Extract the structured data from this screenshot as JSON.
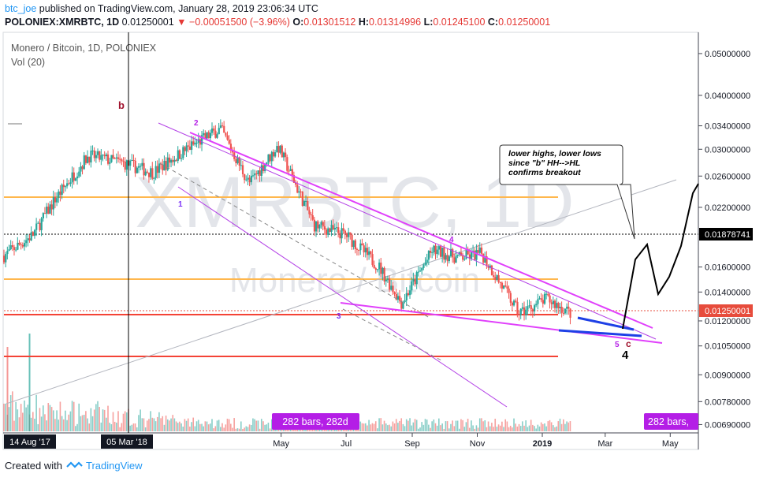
{
  "header": {
    "user": "btc_joe",
    "published_text": "published on TradingView.com, January 28, 2019 23:06:34 UTC",
    "symbol": "POLONIEX:XMRBTC, 1D",
    "last": "0.01250001",
    "change_arrow": "▼",
    "change": "−0.00051500 (−3.96%)",
    "open_label": "O:",
    "open": "0.01301512",
    "high_label": "H:",
    "high": "0.01314996",
    "low_label": "L:",
    "low": "0.01245100",
    "close_label": "C:",
    "close": "0.01250001"
  },
  "legend": {
    "title": "Monero / Bitcoin, 1D, POLONIEX",
    "volume": "Vol (20)"
  },
  "watermark": {
    "main": "XMRBTC, 1D",
    "sub": "Monero / Bitcoin"
  },
  "annotations": {
    "wave_b": "b",
    "wave_1": "1",
    "wave_2": "2",
    "wave_3": "3",
    "wave_4_small": "4",
    "wave_5": "5",
    "wave_c": "c",
    "wave_4_big": "4",
    "callout": [
      "lower highs, lower lows",
      "since \"b\" HH-->HL",
      "confirms breakout"
    ],
    "bars_left": "282 bars, 282d",
    "bars_right": "282 bars,"
  },
  "price_axis": {
    "ticks": [
      "0.05000000",
      "0.04000000",
      "0.03400000",
      "0.03000000",
      "0.02600000",
      "0.02200000",
      "0.01600000",
      "0.01400000",
      "0.01200000",
      "0.01050000",
      "0.00900000",
      "0.00780000",
      "0.00690000"
    ],
    "marker_price": "0.01878741",
    "marker_last": "0.01250001"
  },
  "time_axis": {
    "ticks": [
      "May",
      "Jul",
      "Sep",
      "Nov",
      "2019",
      "Mar",
      "May"
    ],
    "start_label": "14 Aug '17",
    "cursor_label": "05 Mar '18"
  },
  "footer": {
    "created_with": "Created with",
    "brand": "TradingView"
  },
  "colors": {
    "up": "#26a69a",
    "down": "#ef5350",
    "magenta": "#e040fb",
    "orange": "#ffb74d",
    "red_line": "#f44336",
    "blue": "#1e40e6",
    "accent": "#2196f3",
    "watermark": "#e3e5ea",
    "bars_badge": "#b41ee6",
    "last_price": "#e74c3c"
  },
  "chart_data": {
    "type": "candlestick",
    "title": "Monero / Bitcoin, 1D, POLONIEX",
    "symbol": "XMRBTC",
    "interval": "1D",
    "x_range": [
      "2017-08-14",
      "2019-05-20"
    ],
    "y_scale": "log",
    "y_range": [
      0.0066,
      0.056
    ],
    "price_path_approx": [
      {
        "date": "2017-08-14",
        "close": 0.017
      },
      {
        "date": "2017-09-10",
        "close": 0.019
      },
      {
        "date": "2017-10-01",
        "close": 0.023
      },
      {
        "date": "2017-11-01",
        "close": 0.029
      },
      {
        "date": "2017-12-01",
        "close": 0.028
      },
      {
        "date": "2018-01-01",
        "close": 0.0265
      },
      {
        "date": "2018-02-01",
        "close": 0.03
      },
      {
        "date": "2018-03-05",
        "close": 0.0335
      },
      {
        "date": "2018-04-01",
        "close": 0.025
      },
      {
        "date": "2018-04-28",
        "close": 0.0305
      },
      {
        "date": "2018-06-01",
        "close": 0.02
      },
      {
        "date": "2018-07-01",
        "close": 0.019
      },
      {
        "date": "2018-08-01",
        "close": 0.016
      },
      {
        "date": "2018-08-22",
        "close": 0.0132
      },
      {
        "date": "2018-09-20",
        "close": 0.0175
      },
      {
        "date": "2018-10-15",
        "close": 0.0168
      },
      {
        "date": "2018-11-05",
        "close": 0.0172
      },
      {
        "date": "2018-12-10",
        "close": 0.0125
      },
      {
        "date": "2019-01-05",
        "close": 0.0135
      },
      {
        "date": "2019-01-28",
        "close": 0.0125
      }
    ],
    "horizontal_levels": [
      {
        "price": 0.0223,
        "color": "orange"
      },
      {
        "price": 0.0147,
        "color": "orange"
      },
      {
        "price": 0.0123,
        "color": "red"
      },
      {
        "price": 0.0096,
        "color": "red"
      },
      {
        "price": 0.01878741,
        "color": "black",
        "style": "dotted"
      }
    ],
    "projection_path": [
      {
        "date": "2019-03-15",
        "price": 0.0116
      },
      {
        "date": "2019-03-25",
        "price": 0.016
      },
      {
        "date": "2019-04-05",
        "price": 0.0178
      },
      {
        "date": "2019-04-15",
        "price": 0.0138
      },
      {
        "date": "2019-04-28",
        "price": 0.0148
      },
      {
        "date": "2019-05-10",
        "price": 0.0178
      },
      {
        "date": "2019-05-20",
        "price": 0.0238
      },
      {
        "date": "2019-06-01",
        "price": 0.0258
      }
    ]
  }
}
